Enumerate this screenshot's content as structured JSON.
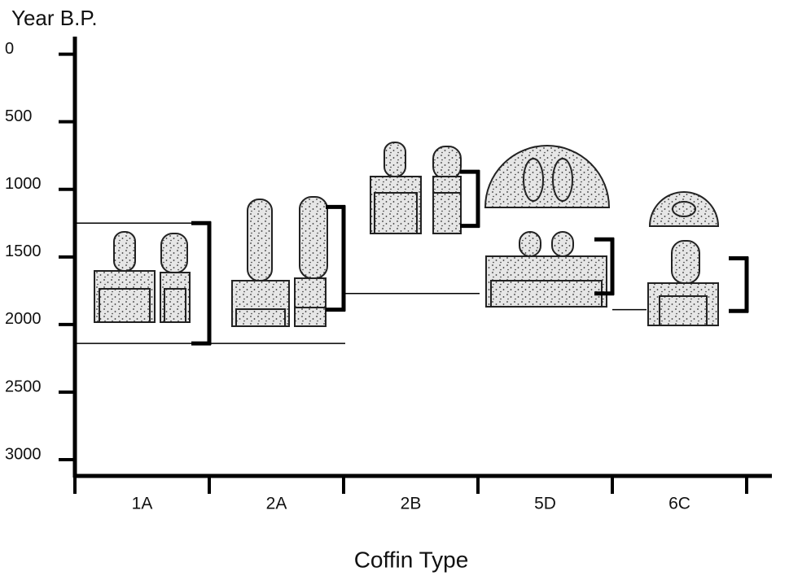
{
  "chart_data": {
    "type": "range",
    "y_label": "Year B.P.",
    "x_label": "Coffin Type",
    "categories": [
      "1A",
      "2A",
      "2B",
      "5D",
      "6C"
    ],
    "low": [
      1250,
      1130,
      870,
      1370,
      1510
    ],
    "high": [
      2140,
      1890,
      1270,
      1770,
      1900
    ],
    "ylim": [
      -130,
      3120
    ],
    "yticks": [
      0,
      500,
      1000,
      1500,
      2000,
      2500,
      3000
    ],
    "y_inverted": true,
    "color": "#000000"
  }
}
